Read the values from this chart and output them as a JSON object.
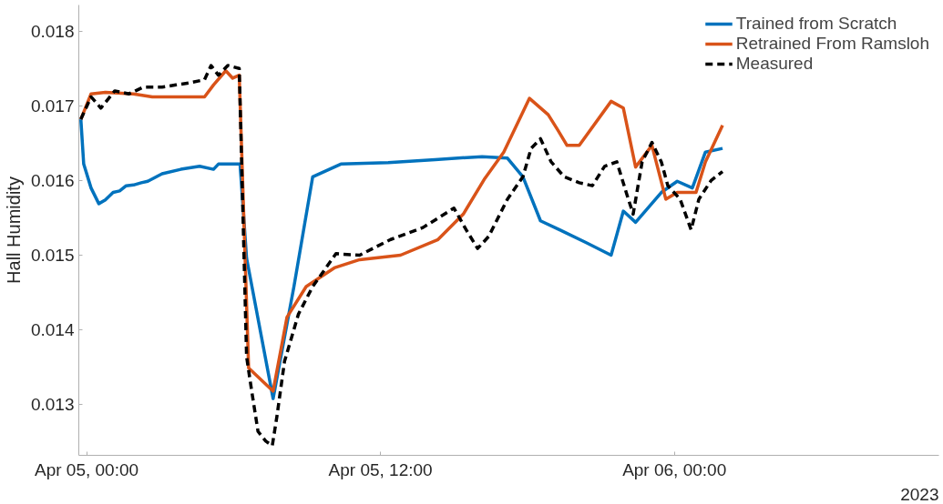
{
  "chart_data": {
    "type": "line",
    "ylabel": "Hall Humidity",
    "xlim": [
      "2023-04-04T23:41",
      "2023-04-06T10:48"
    ],
    "ylim": [
      0.01232,
      0.01835
    ],
    "xticks": [
      {
        "value": "2023-04-05T00:00",
        "label": "Apr 05, 00:00"
      },
      {
        "value": "2023-04-05T12:00",
        "label": "Apr 05, 12:00"
      },
      {
        "value": "2023-04-06T00:00",
        "label": "Apr 06, 00:00"
      }
    ],
    "yticks": [
      0.013,
      0.014,
      0.015,
      0.016,
      0.017,
      0.018
    ],
    "grid": false,
    "legend": "top right",
    "annotations": [
      "2023"
    ],
    "series": [
      {
        "name": "Trained from Scratch",
        "color": "#0072bd",
        "line_style": "solid",
        "x": [
          "2023-04-04T23:46",
          "2023-04-04T23:53",
          "2023-04-05T00:11",
          "2023-04-05T00:30",
          "2023-04-05T00:46",
          "2023-04-05T01:05",
          "2023-04-05T01:21",
          "2023-04-05T01:37",
          "2023-04-05T01:55",
          "2023-04-05T02:14",
          "2023-04-05T02:30",
          "2023-04-05T03:05",
          "2023-04-05T03:51",
          "2023-04-05T04:37",
          "2023-04-05T05:11",
          "2023-04-05T05:23",
          "2023-04-05T06:09",
          "2023-04-05T06:16",
          "2023-04-05T06:32",
          "2023-04-05T07:37",
          "2023-04-05T08:28",
          "2023-04-05T09:14",
          "2023-04-05T10:23",
          "2023-04-05T12:19",
          "2023-04-05T14:14",
          "2023-04-05T16:09",
          "2023-04-05T17:11",
          "2023-04-05T17:49",
          "2023-04-05T18:32",
          "2023-04-05T19:19",
          "2023-04-05T20:23",
          "2023-04-05T21:25",
          "2023-04-05T21:55",
          "2023-04-05T22:25",
          "2023-04-05T23:28",
          "2023-04-06T00:07",
          "2023-04-06T00:44",
          "2023-04-06T01:16",
          "2023-04-06T01:58"
        ],
        "values": [
          0.01682,
          0.01622,
          0.0159,
          0.01569,
          0.01574,
          0.01584,
          0.01586,
          0.01593,
          0.01594,
          0.01597,
          0.01599,
          0.01609,
          0.01615,
          0.01619,
          0.01615,
          0.01622,
          0.01622,
          0.01622,
          0.01496,
          0.01308,
          0.01458,
          0.01605,
          0.01622,
          0.01624,
          0.01628,
          0.01632,
          0.0163,
          0.01605,
          0.01546,
          0.01534,
          0.01517,
          0.015,
          0.01559,
          0.01544,
          0.01584,
          0.01599,
          0.0159,
          0.01638,
          0.01643
        ]
      },
      {
        "name": "Retrained From Ramsloh",
        "color": "#d95319",
        "line_style": "solid",
        "x": [
          "2023-04-04T23:46",
          "2023-04-05T00:11",
          "2023-04-05T00:46",
          "2023-04-05T01:55",
          "2023-04-05T02:41",
          "2023-04-05T03:51",
          "2023-04-05T04:49",
          "2023-04-05T05:11",
          "2023-04-05T05:41",
          "2023-04-05T05:58",
          "2023-04-05T06:14",
          "2023-04-05T06:37",
          "2023-04-05T07:37",
          "2023-04-05T08:11",
          "2023-04-05T08:58",
          "2023-04-05T10:07",
          "2023-04-05T11:09",
          "2023-04-05T12:49",
          "2023-04-05T14:21",
          "2023-04-05T15:23",
          "2023-04-05T16:16",
          "2023-04-05T17:02",
          "2023-04-05T18:05",
          "2023-04-05T18:51",
          "2023-04-05T19:14",
          "2023-04-05T19:37",
          "2023-04-05T20:07",
          "2023-04-05T21:25",
          "2023-04-05T21:55",
          "2023-04-05T22:25",
          "2023-04-05T23:05",
          "2023-04-05T23:39",
          "2023-04-06T00:07",
          "2023-04-06T00:53",
          "2023-04-06T01:16",
          "2023-04-06T01:58"
        ],
        "values": [
          0.01682,
          0.01716,
          0.01718,
          0.01716,
          0.01712,
          0.01712,
          0.01712,
          0.01728,
          0.01747,
          0.01737,
          0.01741,
          0.01349,
          0.01318,
          0.01417,
          0.01458,
          0.01483,
          0.01494,
          0.015,
          0.01521,
          0.01555,
          0.01603,
          0.01638,
          0.0171,
          0.01688,
          0.01668,
          0.01647,
          0.01647,
          0.01706,
          0.01697,
          0.01618,
          0.01647,
          0.01575,
          0.01584,
          0.01584,
          0.01625,
          0.01674
        ]
      },
      {
        "name": "Measured",
        "color": "#000000",
        "line_style": "dashed",
        "x": [
          "2023-04-04T23:46",
          "2023-04-05T00:11",
          "2023-04-05T00:35",
          "2023-04-05T01:09",
          "2023-04-05T01:44",
          "2023-04-05T02:19",
          "2023-04-05T03:05",
          "2023-04-05T03:39",
          "2023-04-05T04:14",
          "2023-04-05T04:49",
          "2023-04-05T05:05",
          "2023-04-05T05:23",
          "2023-04-05T05:46",
          "2023-04-05T06:14",
          "2023-04-05T06:32",
          "2023-04-05T06:44",
          "2023-04-05T07:00",
          "2023-04-05T07:19",
          "2023-04-05T07:35",
          "2023-04-05T07:46",
          "2023-04-05T08:05",
          "2023-04-05T08:39",
          "2023-04-05T09:14",
          "2023-04-05T10:11",
          "2023-04-05T11:09",
          "2023-04-05T12:25",
          "2023-04-05T13:44",
          "2023-04-05T15:00",
          "2023-04-05T15:30",
          "2023-04-05T15:58",
          "2023-04-05T16:25",
          "2023-04-05T17:11",
          "2023-04-05T17:49",
          "2023-04-05T18:09",
          "2023-04-05T18:32",
          "2023-04-05T18:58",
          "2023-04-05T19:30",
          "2023-04-05T20:07",
          "2023-04-05T20:39",
          "2023-04-05T21:09",
          "2023-04-05T21:39",
          "2023-04-05T22:02",
          "2023-04-05T22:19",
          "2023-04-05T22:41",
          "2023-04-05T23:05",
          "2023-04-05T23:28",
          "2023-04-05T23:44",
          "2023-04-06T00:14",
          "2023-04-06T00:41",
          "2023-04-06T01:00",
          "2023-04-06T01:30",
          "2023-04-06T01:58"
        ],
        "values": [
          0.01682,
          0.01712,
          0.01697,
          0.0172,
          0.01716,
          0.01725,
          0.01725,
          0.01728,
          0.01731,
          0.01735,
          0.01754,
          0.01741,
          0.01754,
          0.0175,
          0.01364,
          0.0132,
          0.01264,
          0.01251,
          0.01245,
          0.01283,
          0.01358,
          0.01421,
          0.01458,
          0.01502,
          0.015,
          0.01521,
          0.01537,
          0.01563,
          0.01534,
          0.01509,
          0.01525,
          0.01575,
          0.01605,
          0.01643,
          0.01656,
          0.01625,
          0.01605,
          0.01597,
          0.01593,
          0.01619,
          0.01625,
          0.01584,
          0.01555,
          0.01625,
          0.01651,
          0.01625,
          0.01593,
          0.01575,
          0.01534,
          0.01575,
          0.016,
          0.01612
        ]
      }
    ]
  }
}
